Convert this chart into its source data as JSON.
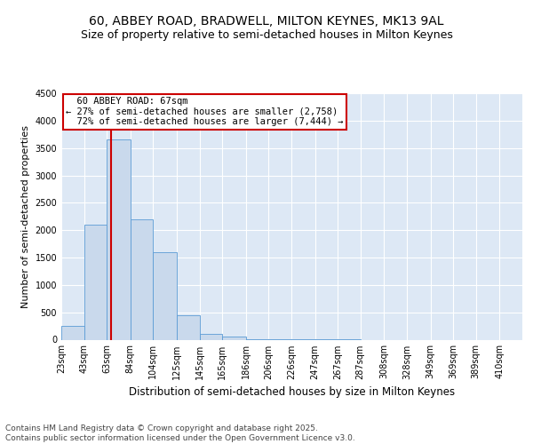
{
  "title": "60, ABBEY ROAD, BRADWELL, MILTON KEYNES, MK13 9AL",
  "subtitle": "Size of property relative to semi-detached houses in Milton Keynes",
  "xlabel": "Distribution of semi-detached houses by size in Milton Keynes",
  "ylabel": "Number of semi-detached properties",
  "footer": "Contains HM Land Registry data © Crown copyright and database right 2025.\nContains public sector information licensed under the Open Government Licence v3.0.",
  "bins": [
    23,
    43,
    63,
    84,
    104,
    125,
    145,
    165,
    186,
    206,
    226,
    247,
    267,
    287,
    308,
    328,
    349,
    369,
    389,
    410,
    430
  ],
  "values": [
    250,
    2100,
    3650,
    2200,
    1600,
    450,
    100,
    55,
    8,
    3,
    2,
    1,
    1,
    0,
    0,
    0,
    0,
    0,
    0,
    0
  ],
  "bar_color": "#c9d9ec",
  "bar_edge_color": "#5b9bd5",
  "property_size": 67,
  "property_label": "60 ABBEY ROAD: 67sqm",
  "pct_smaller": 27,
  "pct_larger": 72,
  "n_smaller": 2758,
  "n_larger": 7444,
  "red_line_color": "#cc0000",
  "annotation_box_color": "#cc0000",
  "ylim": [
    0,
    4500
  ],
  "yticks": [
    0,
    500,
    1000,
    1500,
    2000,
    2500,
    3000,
    3500,
    4000,
    4500
  ],
  "bg_color": "#dde8f5",
  "grid_color": "#ffffff",
  "title_fontsize": 10,
  "subtitle_fontsize": 9,
  "ylabel_fontsize": 8,
  "xlabel_fontsize": 8.5,
  "tick_fontsize": 7,
  "annotation_fontsize": 7.5,
  "footer_fontsize": 6.5
}
